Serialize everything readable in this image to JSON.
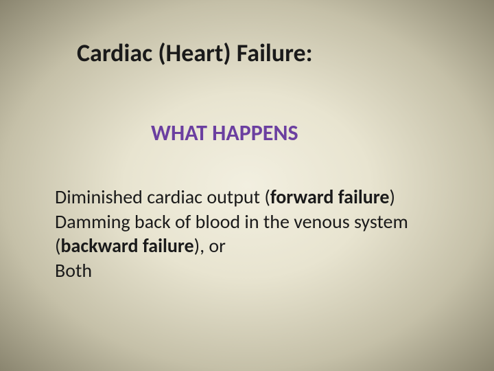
{
  "slide": {
    "title": "Cardiac (Heart) Failure:",
    "subtitle": "WHAT HAPPENS",
    "body": {
      "line1_pre": "Diminished cardiac output (",
      "line1_bold": "forward failure",
      "line1_post": ")",
      "line2": "Damming back of blood in the venous system",
      "line3_pre": "(",
      "line3_bold": "backward failure",
      "line3_post": "), or",
      "line4": "Both"
    }
  },
  "colors": {
    "background_center": "#f2efe0",
    "background_edge": "#8a856f",
    "title_color": "#1a1a1a",
    "subtitle_color": "#6b3fa0",
    "body_color": "#1a1a1a"
  },
  "typography": {
    "title_fontsize": 36,
    "subtitle_fontsize": 32,
    "body_fontsize": 28,
    "font_family": "Calibri"
  }
}
